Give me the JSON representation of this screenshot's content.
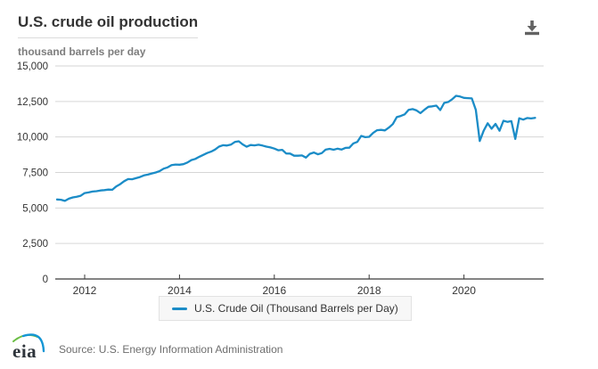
{
  "header": {
    "title": "U.S. crude oil production",
    "subtitle": "thousand barrels per day"
  },
  "legend": {
    "label": "U.S. Crude Oil (Thousand Barrels per Day)"
  },
  "footer": {
    "logo_text": "eia",
    "source": "Source: U.S. Energy Information Administration"
  },
  "icons": {
    "download": "download-icon",
    "eia_logo": "eia-logo"
  },
  "colors": {
    "line": "#1b8cc7",
    "grid": "#d6d6d6",
    "axis": "#3a3a3a",
    "tick_label": "#333333",
    "title": "#333333",
    "subtitle": "#7d7d7d",
    "legend_bg": "#f7f7f7",
    "legend_border": "#e2e2e2",
    "icon_gray": "#636363",
    "logo_green": "#6bbe45",
    "logo_blue": "#1496d5"
  },
  "chart_data": {
    "type": "line",
    "title": "U.S. crude oil production",
    "subtitle_unit": "thousand barrels per day",
    "ylim": [
      0,
      15000
    ],
    "y_ticks": [
      0,
      2500,
      5000,
      7500,
      10000,
      12500,
      15000
    ],
    "x_ticks": [
      2012,
      2014,
      2016,
      2018,
      2020
    ],
    "grid": "horizontal",
    "legend_position": "bottom",
    "series": [
      {
        "name": "U.S. Crude Oil (Thousand Barrels per Day)",
        "start_year_decimal": 2011.4167,
        "interval_years": 0.08333,
        "values": [
          5600,
          5580,
          5500,
          5657,
          5740,
          5791,
          5861,
          6049,
          6096,
          6155,
          6180,
          6233,
          6257,
          6294,
          6283,
          6524,
          6675,
          6883,
          7037,
          7021,
          7096,
          7178,
          7291,
          7351,
          7431,
          7500,
          7600,
          7769,
          7856,
          8017,
          8058,
          8043,
          8085,
          8200,
          8375,
          8455,
          8605,
          8739,
          8868,
          8967,
          9116,
          9318,
          9419,
          9395,
          9461,
          9648,
          9694,
          9479,
          9315,
          9433,
          9407,
          9452,
          9398,
          9318,
          9262,
          9179,
          9060,
          9097,
          8837,
          8830,
          8677,
          8680,
          8696,
          8549,
          8809,
          8903,
          8783,
          8861,
          9105,
          9162,
          9101,
          9176,
          9110,
          9234,
          9242,
          9546,
          9655,
          10074,
          9983,
          10009,
          10283,
          10474,
          10497,
          10465,
          10666,
          10910,
          11397,
          11480,
          11590,
          11905,
          11961,
          11871,
          11683,
          11917,
          12123,
          12154,
          12209,
          11892,
          12397,
          12463,
          12655,
          12896,
          12846,
          12755,
          12736,
          12716,
          11911,
          9714,
          10436,
          10967,
          10583,
          10920,
          10436,
          11141,
          11063,
          11114,
          9862,
          11316,
          11223,
          11337,
          11302,
          11347
        ]
      }
    ]
  }
}
